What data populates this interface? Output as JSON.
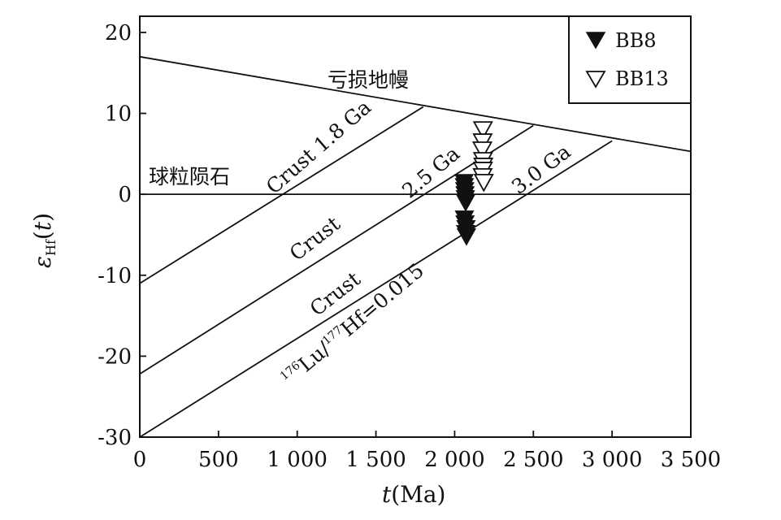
{
  "chart_data": {
    "type": "scatter",
    "xlabel": "t(Ma)",
    "ylabel": "εHf(t)",
    "xlim": [
      0,
      3500
    ],
    "ylim": [
      -30,
      22
    ],
    "x_ticks": [
      0,
      500,
      1000,
      1500,
      2000,
      2500,
      3000,
      3500
    ],
    "x_tick_labels": [
      "0",
      "500",
      "1 000",
      "1 500",
      "2 000",
      "2 500",
      "3 000",
      "3 500"
    ],
    "y_ticks": [
      20,
      10,
      0,
      -10,
      -20,
      -30
    ],
    "y_tick_labels": [
      "20",
      "10",
      "0",
      "-10",
      "-20",
      "-30"
    ],
    "reference_lines": [
      {
        "label": "亏损地幔",
        "points": [
          [
            0,
            17
          ],
          [
            3500,
            5.3
          ]
        ]
      },
      {
        "label": "球粒陨石",
        "points": [
          [
            0,
            0
          ],
          [
            3500,
            0
          ]
        ]
      },
      {
        "label": "Crust 1.8 Ga",
        "points": [
          [
            0,
            -11
          ],
          [
            1800,
            10.8
          ]
        ]
      },
      {
        "label": "2.5 Ga",
        "points": [
          [
            0,
            -22.2
          ],
          [
            2500,
            8.5
          ]
        ]
      },
      {
        "label": "3.0 Ga",
        "points": [
          [
            0,
            -30
          ],
          [
            3000,
            6.6
          ]
        ]
      }
    ],
    "annotations": [
      "Crust 1.8 Ga",
      "2.5 Ga",
      "3.0 Ga",
      "Crust",
      "Crust",
      "Lu/Hf=0.015",
      "亏损地幔",
      "球粒陨石"
    ],
    "series": [
      {
        "name": "BB8",
        "marker": "filled-down-triangle",
        "x": [
          2060,
          2062,
          2064,
          2066,
          2068,
          2070,
          2062,
          2066,
          2072,
          2070,
          2075
        ],
        "y": [
          1.5,
          1.0,
          0.5,
          0.0,
          -0.5,
          -1.0,
          -3.0,
          -3.6,
          -4.2,
          -4.8,
          -5.2
        ]
      },
      {
        "name": "BB13",
        "marker": "open-down-triangle",
        "x": [
          2180,
          2178,
          2176,
          2180,
          2182,
          2180,
          2178,
          2185
        ],
        "y": [
          8.0,
          6.5,
          5.5,
          4.2,
          3.5,
          3.0,
          2.2,
          1.5
        ]
      }
    ],
    "legend": {
      "placement": "top-right",
      "entries": [
        "BB8",
        "BB13"
      ]
    },
    "colors": {
      "line": "#111111",
      "filled": "#111111",
      "open": "#ffffff"
    },
    "grid": false
  }
}
